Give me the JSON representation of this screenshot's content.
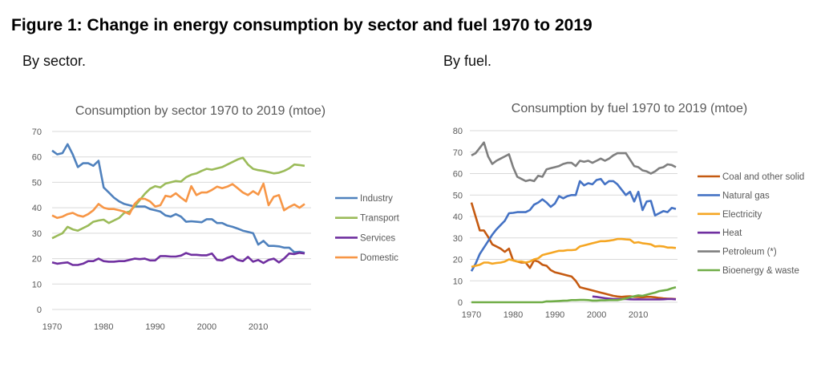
{
  "figure_title": "Figure 1: Change in energy consumption by sector and fuel 1970 to 2019",
  "left_subtitle": "By sector.",
  "right_subtitle": "By fuel.",
  "chart_data": [
    {
      "type": "line",
      "title": "Consumption by sector 1970 to 2019 (mtoe)",
      "x_start": 1970,
      "x_end": 2019,
      "xticks": [
        "1970",
        "1980",
        "1990",
        "2000",
        "2010"
      ],
      "yticks": [
        "0",
        "10",
        "20",
        "30",
        "40",
        "50",
        "60",
        "70"
      ],
      "ylim": [
        0,
        70
      ],
      "grid": "horizontal",
      "legend": "right",
      "series": [
        {
          "name": "Industry",
          "color": "#4F81BD",
          "values": [
            62.5,
            61,
            61.5,
            65,
            61,
            56,
            57.5,
            57.5,
            56.5,
            58.5,
            48,
            46,
            44,
            42.5,
            41.5,
            41,
            40.5,
            40.5,
            40.5,
            39.5,
            39,
            38.5,
            37,
            36.5,
            37.5,
            36.5,
            34.5,
            34.7,
            34.5,
            34.3,
            35.5,
            35.5,
            34,
            34,
            33,
            32.5,
            31.8,
            31,
            30.5,
            30,
            25.5,
            27,
            25,
            25,
            24.8,
            24.3,
            24.3,
            22.5,
            22.7,
            22.3
          ]
        },
        {
          "name": "Transport",
          "color": "#9BBB59",
          "values": [
            28,
            29,
            30,
            32.5,
            31.5,
            31,
            32,
            33,
            34.5,
            35,
            35.3,
            34,
            35,
            36,
            38,
            38.5,
            40.5,
            43,
            45.5,
            47.5,
            48.5,
            48,
            49.5,
            50,
            50.5,
            50.3,
            52,
            53,
            53.5,
            54.5,
            55.3,
            55,
            55.5,
            56,
            57,
            58,
            59,
            59.7,
            57,
            55.3,
            54.8,
            54.5,
            54,
            53.5,
            53.8,
            54.5,
            55.5,
            57,
            56.8,
            56.5
          ]
        },
        {
          "name": "Services",
          "color": "#7030A0",
          "values": [
            18.5,
            18,
            18.3,
            18.5,
            17.5,
            17.5,
            18,
            19,
            19,
            20,
            19,
            18.8,
            18.8,
            19,
            19,
            19.5,
            20,
            19.8,
            20,
            19.3,
            19.3,
            21,
            21,
            20.8,
            20.8,
            21.2,
            22.2,
            21.5,
            21.5,
            21.3,
            21.3,
            22,
            19.5,
            19.3,
            20.3,
            21,
            19.5,
            19,
            20.7,
            18.8,
            19.5,
            18.3,
            19.5,
            20,
            18.5,
            20,
            22,
            21.8,
            22.3,
            22
          ]
        },
        {
          "name": "Domestic",
          "color": "#F79646",
          "values": [
            37,
            36,
            36.5,
            37.5,
            38,
            37,
            36.5,
            37.5,
            39,
            41.5,
            40,
            39.5,
            39.5,
            39,
            38.5,
            37.5,
            41.5,
            43.5,
            43.5,
            42.5,
            40.5,
            41,
            44.7,
            44.3,
            45.7,
            44,
            42.5,
            48.5,
            45,
            46,
            46,
            47,
            48.3,
            47.7,
            48.3,
            49.3,
            47.7,
            46,
            45,
            46.5,
            45.2,
            49.5,
            41,
            44.3,
            45,
            39,
            40.3,
            41.3,
            40,
            41.5
          ]
        }
      ]
    },
    {
      "type": "line",
      "title": "Consumption by fuel 1970 to 2019 (mtoe)",
      "x_start": 1970,
      "x_end": 2019,
      "xticks": [
        "1970",
        "1980",
        "1990",
        "2000",
        "2010"
      ],
      "yticks": [
        "0",
        "10",
        "20",
        "30",
        "40",
        "50",
        "60",
        "70",
        "80"
      ],
      "ylim": [
        0,
        80
      ],
      "grid": "horizontal",
      "legend": "right",
      "series": [
        {
          "name": "Coal and other solid",
          "color": "#C55A11",
          "values": [
            46.5,
            40,
            33.5,
            33.5,
            30.5,
            27,
            26,
            25,
            23.5,
            25,
            19.5,
            19,
            18.5,
            18.5,
            16,
            19.5,
            19,
            17.5,
            17,
            15,
            14,
            13.5,
            13,
            12.5,
            12,
            10,
            7,
            6.5,
            6,
            5.5,
            5,
            4.5,
            4,
            3.5,
            3,
            2.7,
            2.5,
            2.7,
            2.8,
            2.5,
            2.5,
            2.3,
            2.5,
            2.5,
            2.3,
            2,
            1.8,
            1.7,
            1.6,
            1.5
          ]
        },
        {
          "name": "Natural gas",
          "color": "#4472C4",
          "values": [
            14.5,
            18,
            22.5,
            25.5,
            28.5,
            31.5,
            34,
            36,
            38,
            41.5,
            41.7,
            42,
            42,
            42,
            43,
            45.5,
            46.5,
            48,
            46.5,
            44.5,
            46,
            49.5,
            48.5,
            49.5,
            50,
            50,
            56.5,
            54.5,
            55.5,
            55,
            57,
            57.5,
            55,
            56.5,
            56.5,
            55,
            52.5,
            50,
            51.5,
            47,
            51.5,
            43,
            47,
            47.3,
            40.5,
            41.5,
            42.5,
            42,
            44,
            43.5
          ]
        },
        {
          "name": "Electricity",
          "color": "#F5A623",
          "values": [
            16.5,
            17,
            17.5,
            18.5,
            18.5,
            18,
            18.3,
            18.5,
            19,
            20,
            19.5,
            19,
            19,
            18.5,
            19,
            20,
            20.5,
            22,
            22.5,
            23,
            23.5,
            24,
            24,
            24.3,
            24.3,
            24.5,
            26,
            26.5,
            27,
            27.5,
            28,
            28.5,
            28.5,
            28.7,
            29,
            29.5,
            29.5,
            29.3,
            29.2,
            27.7,
            28,
            27.5,
            27.3,
            27,
            26,
            26.2,
            26,
            25.5,
            25.5,
            25.3
          ]
        },
        {
          "name": "Heat",
          "color": "#7030A0",
          "values": [
            null,
            null,
            null,
            null,
            null,
            null,
            null,
            null,
            null,
            null,
            null,
            null,
            null,
            null,
            null,
            null,
            null,
            null,
            null,
            null,
            null,
            null,
            null,
            null,
            null,
            null,
            null,
            null,
            null,
            2.7,
            2.5,
            2.2,
            1.9,
            1.7,
            1.5,
            1.5,
            1.5,
            1.5,
            1.4,
            1.3,
            1.4,
            1.3,
            1.3,
            1.3,
            1.3,
            1.3,
            1.4,
            1.5,
            1.5,
            1.4
          ]
        },
        {
          "name": "Petroleum (*)",
          "color": "#7F7F7F",
          "values": [
            68.5,
            69.5,
            72,
            74.5,
            68,
            64.5,
            66,
            67,
            68,
            69,
            63,
            58.5,
            57.5,
            56.5,
            57,
            56.5,
            59,
            58.5,
            62,
            62.5,
            63,
            63.5,
            64.5,
            65,
            65,
            63.5,
            66,
            65.5,
            66,
            65,
            66,
            67,
            66,
            67,
            68.5,
            69.5,
            69.5,
            69.5,
            66.5,
            63.5,
            63,
            61.5,
            61,
            60,
            61,
            62.5,
            63,
            64.3,
            64,
            63
          ]
        },
        {
          "name": "Bioenergy & waste",
          "color": "#70AD47",
          "values": [
            0,
            0,
            0,
            0,
            0,
            0,
            0,
            0,
            0,
            0,
            0,
            0,
            0,
            0,
            0,
            0,
            0,
            0,
            0.4,
            0.4,
            0.5,
            0.6,
            0.7,
            0.8,
            1,
            1,
            1.1,
            1.1,
            1,
            0.8,
            0.8,
            0.9,
            0.9,
            1,
            1,
            1,
            1.3,
            1.8,
            2.3,
            2.8,
            3.2,
            3,
            3.5,
            4,
            4.5,
            5.2,
            5.5,
            5.8,
            6.5,
            7
          ]
        }
      ]
    }
  ]
}
